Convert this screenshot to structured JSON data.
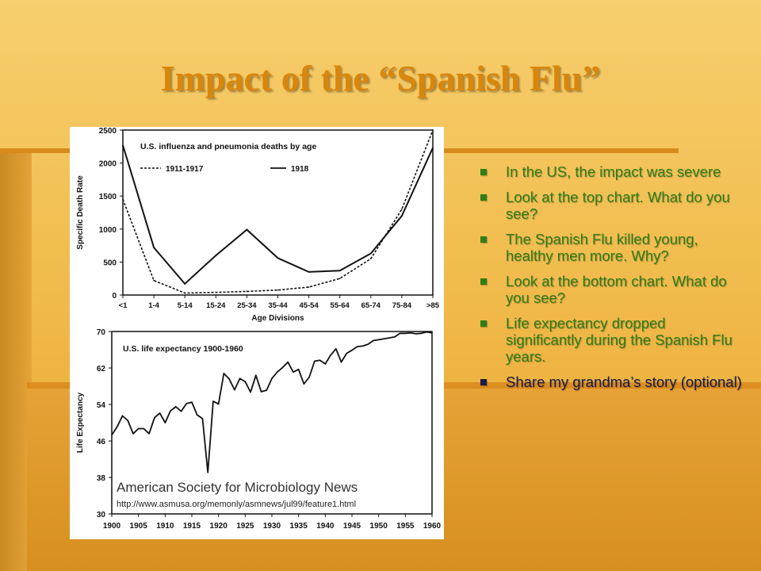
{
  "slide": {
    "title": "Impact of the “Spanish Flu”",
    "bullets": [
      "In the US, the impact was severe",
      "Look at the top chart. What do you see?",
      "The Spanish Flu killed young, healthy men more. Why?",
      "Look at the bottom chart. What do you see?",
      "Life expectancy dropped significantly during the Spanish Flu years.",
      "Share my grandma’s story (optional)"
    ]
  },
  "colors": {
    "title": "#d9860c",
    "bullet_text": "#2f7d18",
    "bullet_dark": "#1b1b4a",
    "chart_ink": "#111111"
  },
  "chart_data": [
    {
      "type": "line",
      "title": "U.S. influenza and pneumonia deaths by age",
      "xlabel": "Age Divisions",
      "ylabel": "Specific Death Rate",
      "categories": [
        "<1",
        "1-4",
        "5-14",
        "15-24",
        "25-34",
        "35-44",
        "45-54",
        "55-64",
        "65-74",
        "75-84",
        ">85"
      ],
      "ylim": [
        0,
        2500
      ],
      "yticks": [
        0,
        500,
        1000,
        1500,
        2000,
        2500
      ],
      "legend_position": "top-left",
      "series": [
        {
          "name": "1911-1917",
          "style": "dashed",
          "values": [
            1450,
            220,
            30,
            40,
            55,
            75,
            120,
            250,
            550,
            1300,
            2500
          ]
        },
        {
          "name": "1918",
          "style": "solid",
          "values": [
            2270,
            720,
            170,
            600,
            990,
            560,
            350,
            370,
            630,
            1200,
            2230
          ]
        }
      ]
    },
    {
      "type": "line",
      "title": "U.S. life expectancy 1900-1960",
      "xlabel": "",
      "ylabel": "Life Expectancy",
      "xticks": [
        1900,
        1905,
        1910,
        1915,
        1920,
        1925,
        1930,
        1935,
        1940,
        1945,
        1950,
        1955,
        1960
      ],
      "yticks": [
        30,
        38,
        46,
        54,
        62,
        70
      ],
      "ylim": [
        30,
        70
      ],
      "xlim": [
        1900,
        1960
      ],
      "annotation": "American Society for Microbiology News",
      "source_url": "http://www.asmusa.org/memonly/asmnews/jul99/feature1.html",
      "series": [
        {
          "x": [
            1900,
            1901,
            1902,
            1903,
            1904,
            1905,
            1906,
            1907,
            1908,
            1909,
            1910,
            1911,
            1912,
            1913,
            1914,
            1915,
            1916,
            1917,
            1918,
            1919,
            1920,
            1921,
            1922,
            1923,
            1924,
            1925,
            1926,
            1927,
            1928,
            1929,
            1930,
            1931,
            1932,
            1933,
            1934,
            1935,
            1936,
            1937,
            1938,
            1939,
            1940,
            1941,
            1942,
            1943,
            1944,
            1945,
            1946,
            1947,
            1948,
            1949,
            1950,
            1951,
            1952,
            1953,
            1954,
            1955,
            1956,
            1957,
            1958,
            1959,
            1960
          ],
          "y": [
            47.3,
            49.1,
            51.5,
            50.5,
            47.6,
            48.7,
            48.7,
            47.6,
            51.1,
            52.1,
            50.0,
            52.6,
            53.5,
            52.5,
            54.2,
            54.5,
            51.7,
            50.9,
            39.1,
            54.7,
            54.1,
            60.8,
            59.6,
            57.2,
            59.7,
            59.0,
            56.7,
            60.4,
            56.8,
            57.1,
            59.7,
            61.1,
            62.1,
            63.3,
            61.1,
            61.7,
            58.5,
            60.0,
            63.5,
            63.7,
            62.9,
            64.8,
            66.2,
            63.3,
            65.2,
            65.9,
            66.7,
            66.8,
            67.2,
            68.0,
            68.2,
            68.4,
            68.6,
            68.8,
            69.6,
            69.6,
            69.7,
            69.5,
            69.6,
            69.9,
            69.7
          ]
        }
      ]
    }
  ]
}
